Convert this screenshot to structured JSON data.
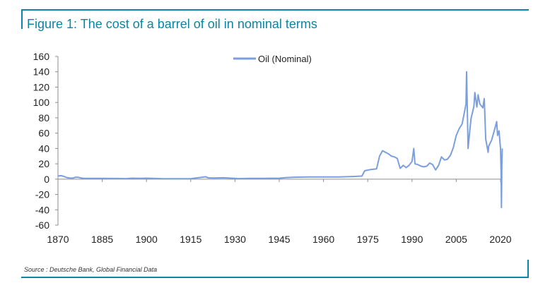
{
  "header": {
    "title": "Figure 1: The cost of a barrel of oil in nominal terms"
  },
  "footer": {
    "source": "Source : Deutsche Bank, Global Financial Data"
  },
  "colors": {
    "accent": "#0a84a8",
    "series": "#7b9fde",
    "axis": "#8c8c8c",
    "text": "#222222"
  },
  "chart_data": {
    "type": "line",
    "title": "Figure 1: The cost of a barrel of oil in nominal terms",
    "xlabel": "",
    "ylabel": "",
    "xlim": [
      1870,
      2020
    ],
    "ylim": [
      -60,
      160
    ],
    "xticks": [
      1870,
      1885,
      1900,
      1915,
      1930,
      1945,
      1960,
      1975,
      1990,
      2005,
      2020
    ],
    "yticks": [
      -60,
      -40,
      -20,
      0,
      20,
      40,
      60,
      80,
      100,
      120,
      140,
      160
    ],
    "grid": false,
    "legend": {
      "position": "top-center",
      "entries": [
        "Oil (Nominal)"
      ]
    },
    "series": [
      {
        "name": "Oil (Nominal)",
        "points": [
          [
            1870,
            4
          ],
          [
            1871,
            4.5
          ],
          [
            1872,
            3.5
          ],
          [
            1873,
            2
          ],
          [
            1874,
            1.5
          ],
          [
            1875,
            1.3
          ],
          [
            1876,
            2.5
          ],
          [
            1877,
            2.3
          ],
          [
            1878,
            1.3
          ],
          [
            1879,
            1
          ],
          [
            1880,
            1
          ],
          [
            1882,
            0.9
          ],
          [
            1885,
            0.9
          ],
          [
            1888,
            0.8
          ],
          [
            1890,
            0.8
          ],
          [
            1893,
            0.7
          ],
          [
            1895,
            1.2
          ],
          [
            1898,
            0.9
          ],
          [
            1900,
            1.2
          ],
          [
            1905,
            0.7
          ],
          [
            1910,
            0.6
          ],
          [
            1915,
            0.6
          ],
          [
            1916,
            1.1
          ],
          [
            1918,
            2
          ],
          [
            1920,
            3.1
          ],
          [
            1921,
            1.7
          ],
          [
            1923,
            1.4
          ],
          [
            1926,
            1.8
          ],
          [
            1930,
            1
          ],
          [
            1931,
            0.7
          ],
          [
            1935,
            1
          ],
          [
            1940,
            1
          ],
          [
            1945,
            1.1
          ],
          [
            1947,
            1.9
          ],
          [
            1950,
            2.5
          ],
          [
            1955,
            2.8
          ],
          [
            1960,
            2.9
          ],
          [
            1965,
            2.9
          ],
          [
            1970,
            3.4
          ],
          [
            1973,
            4
          ],
          [
            1974,
            11
          ],
          [
            1976,
            12.5
          ],
          [
            1978,
            13.5
          ],
          [
            1979,
            30
          ],
          [
            1980,
            37
          ],
          [
            1981,
            35
          ],
          [
            1982,
            33
          ],
          [
            1983,
            30
          ],
          [
            1984,
            29
          ],
          [
            1985,
            27
          ],
          [
            1986,
            14
          ],
          [
            1987,
            18
          ],
          [
            1988,
            15
          ],
          [
            1989,
            18
          ],
          [
            1990,
            23
          ],
          [
            1990.6,
            40
          ],
          [
            1991,
            20
          ],
          [
            1992,
            19
          ],
          [
            1993,
            17
          ],
          [
            1994,
            16
          ],
          [
            1995,
            17
          ],
          [
            1996,
            21
          ],
          [
            1997,
            19
          ],
          [
            1998,
            12
          ],
          [
            1999,
            18
          ],
          [
            2000,
            29
          ],
          [
            2001,
            25
          ],
          [
            2002,
            26
          ],
          [
            2003,
            31
          ],
          [
            2004,
            41
          ],
          [
            2005,
            57
          ],
          [
            2006,
            66
          ],
          [
            2007,
            72
          ],
          [
            2008.3,
            98
          ],
          [
            2008.5,
            140
          ],
          [
            2008.9,
            60
          ],
          [
            2009,
            40
          ],
          [
            2009.5,
            60
          ],
          [
            2010,
            79
          ],
          [
            2011,
            95
          ],
          [
            2011.3,
            113
          ],
          [
            2012,
            94
          ],
          [
            2012.4,
            110
          ],
          [
            2013,
            98
          ],
          [
            2014,
            93
          ],
          [
            2014.5,
            105
          ],
          [
            2015,
            52
          ],
          [
            2015.8,
            35
          ],
          [
            2016,
            43
          ],
          [
            2017,
            51
          ],
          [
            2018,
            65
          ],
          [
            2018.7,
            75
          ],
          [
            2019,
            57
          ],
          [
            2019.5,
            63
          ],
          [
            2020,
            40
          ],
          [
            2020.2,
            10
          ],
          [
            2020.3,
            -37
          ],
          [
            2020.45,
            20
          ],
          [
            2020.6,
            40
          ]
        ]
      }
    ]
  }
}
